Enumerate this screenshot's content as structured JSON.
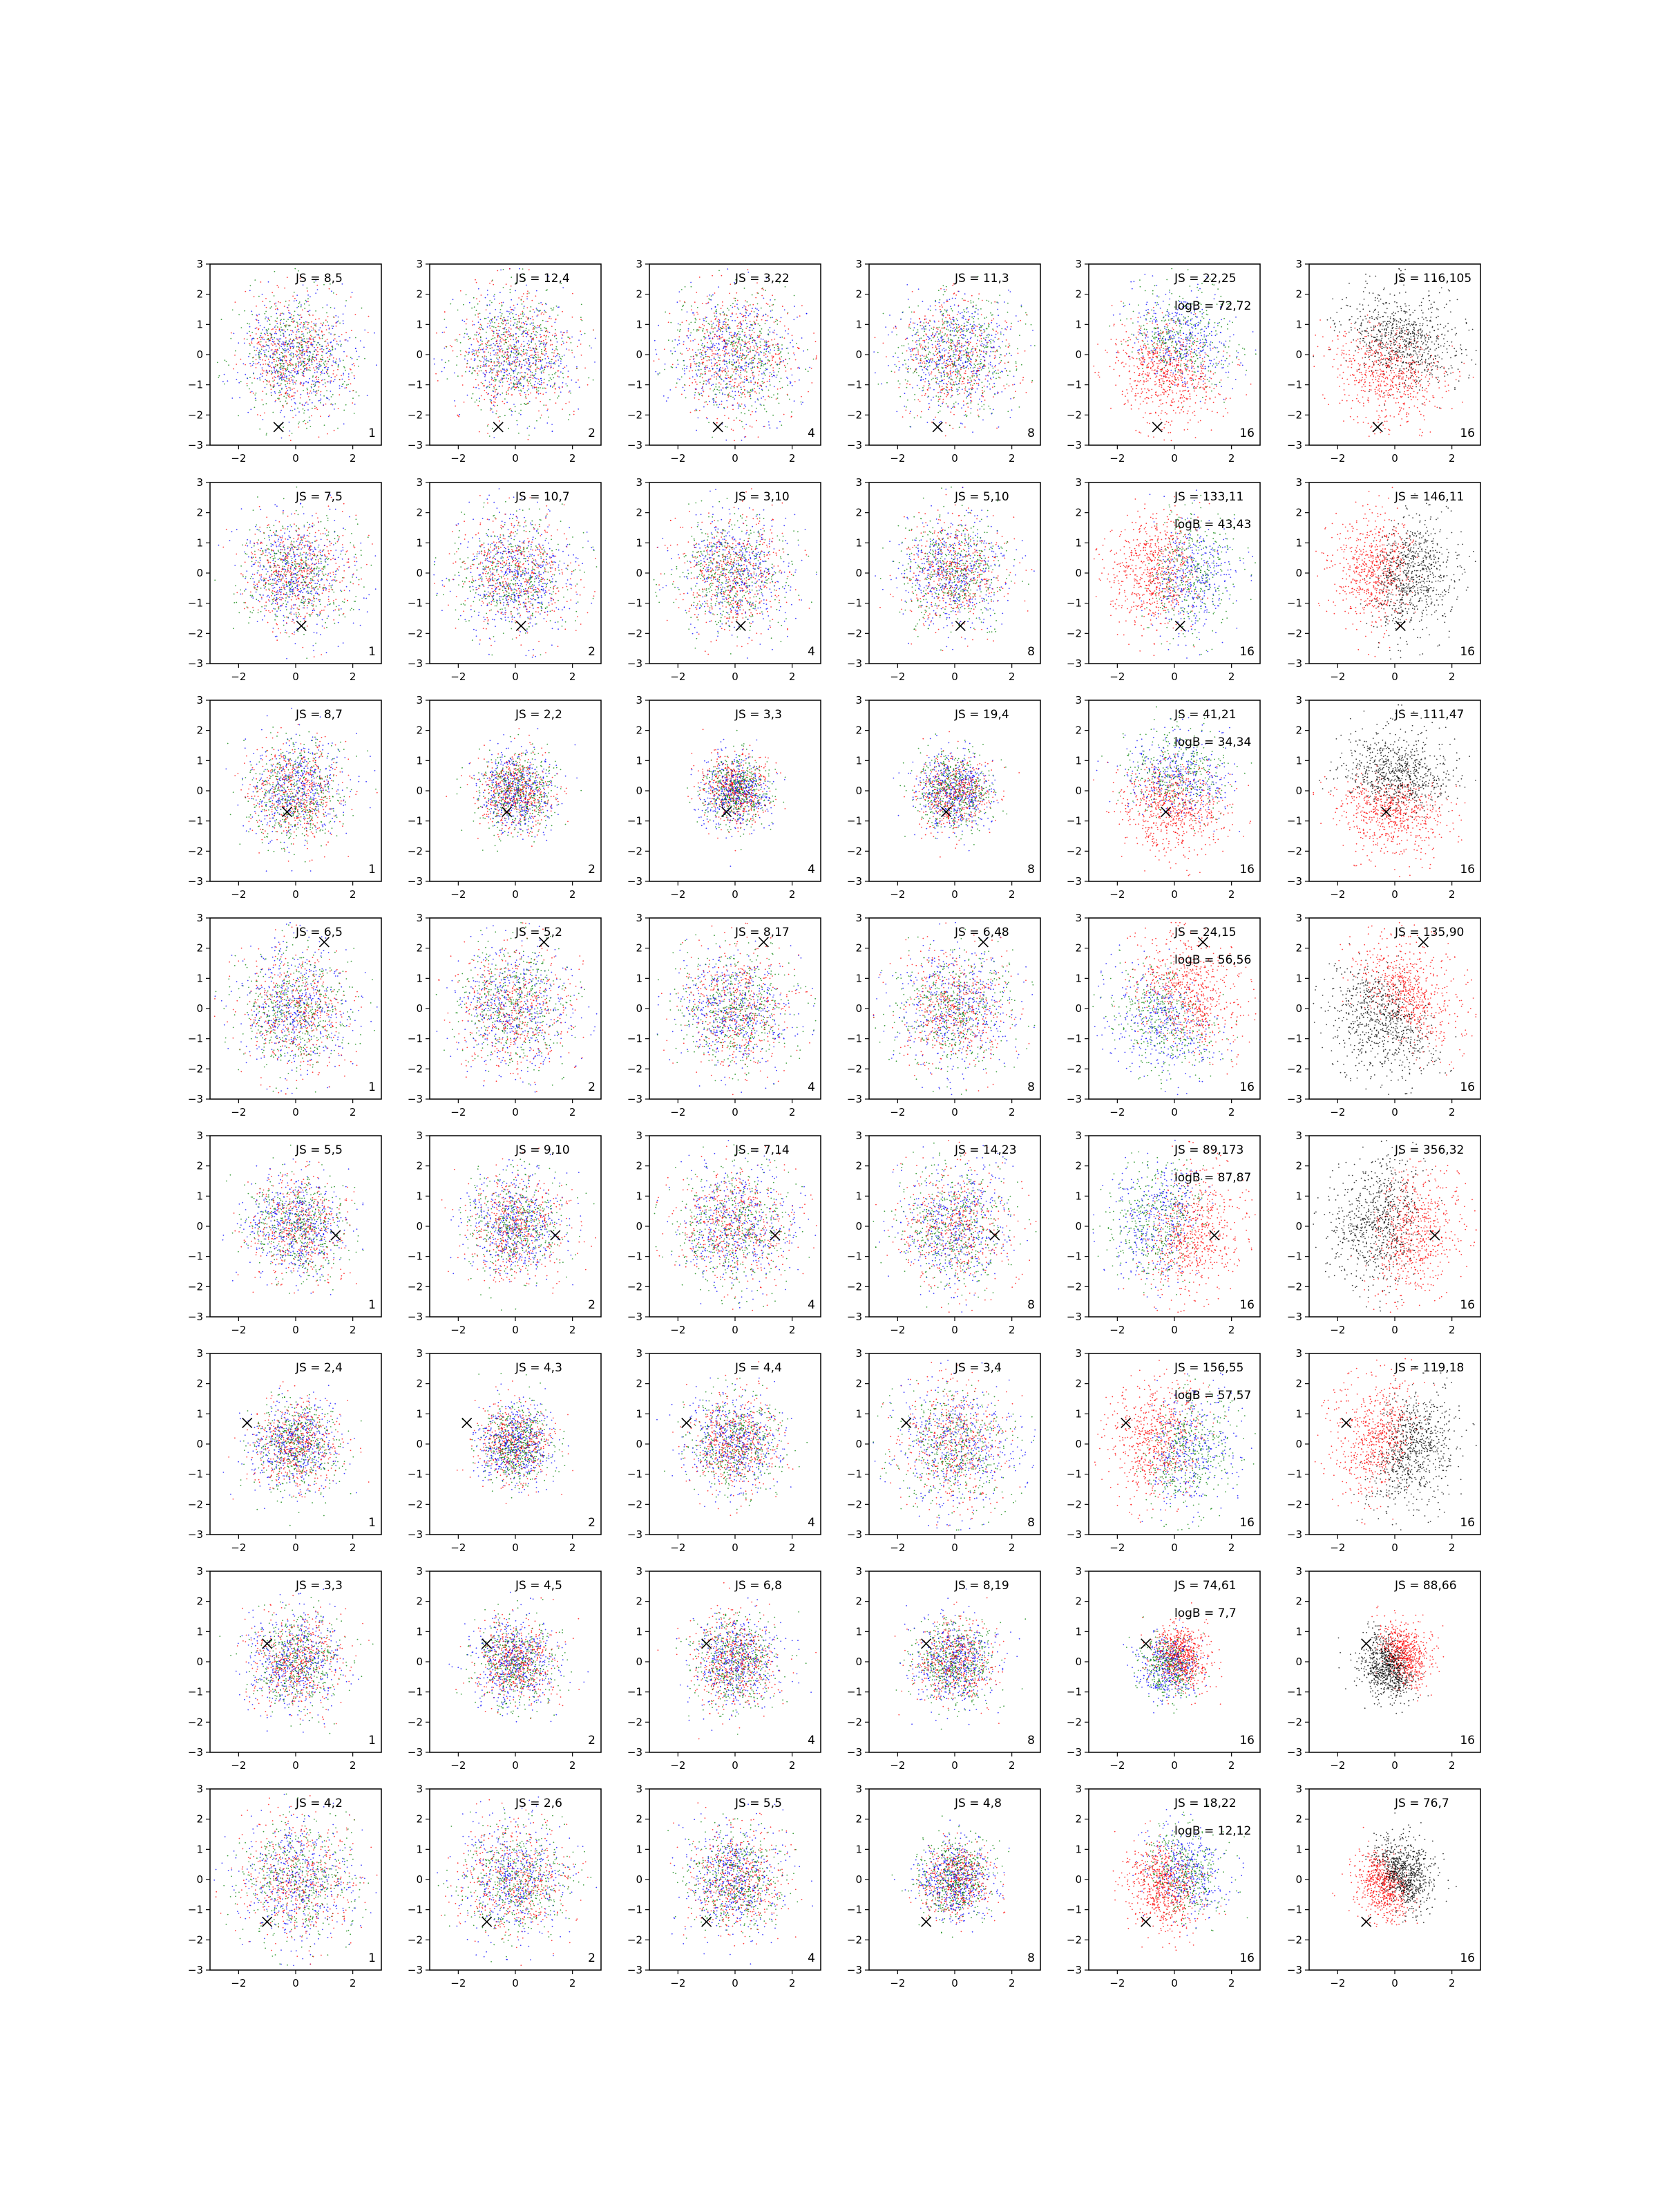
{
  "chart_data": {
    "type": "scatter",
    "layout": {
      "rows": 8,
      "cols": 6
    },
    "xlim": [
      -3,
      3
    ],
    "ylim": [
      -3,
      3
    ],
    "xticks": [
      -2,
      0,
      2
    ],
    "yticks": [
      -3,
      -2,
      -1,
      0,
      1,
      2,
      3
    ],
    "colors": {
      "red": "#ff0000",
      "green": "#008000",
      "blue": "#0000ff",
      "black": "#000000"
    },
    "corner_labels": [
      "1",
      "2",
      "4",
      "8",
      "16",
      "16"
    ],
    "rows": [
      {
        "marker": [
          -0.6,
          -2.4
        ],
        "js": [
          "JS = 8,5",
          "JS = 12,4",
          "JS = 3,22",
          "JS = 11,3",
          "JS = 22,25",
          "JS = 116,105"
        ],
        "logb": "logB = 72,72"
      },
      {
        "marker": [
          0.2,
          -1.75
        ],
        "js": [
          "JS = 7,5",
          "JS = 10,7",
          "JS = 3,10",
          "JS = 5,10",
          "JS = 133,11",
          "JS = 146,11"
        ],
        "logb": "logB = 43,43"
      },
      {
        "marker": [
          -0.3,
          -0.7
        ],
        "js": [
          "JS = 8,7",
          "JS = 2,2",
          "JS = 3,3",
          "JS = 19,4",
          "JS = 41,21",
          "JS = 111,47"
        ],
        "logb": "logB = 34,34"
      },
      {
        "marker": [
          1.0,
          2.2
        ],
        "js": [
          "JS = 6,5",
          "JS = 5,2",
          "JS = 8,17",
          "JS = 6,48",
          "JS = 24,15",
          "JS = 135,90"
        ],
        "logb": "logB = 56,56"
      },
      {
        "marker": [
          1.4,
          -0.3
        ],
        "js": [
          "JS = 5,5",
          "JS = 9,10",
          "JS = 7,14",
          "JS = 14,23",
          "JS = 89,173",
          "JS = 356,32"
        ],
        "logb": "logB = 87,87"
      },
      {
        "marker": [
          -1.7,
          0.7
        ],
        "js": [
          "JS = 2,4",
          "JS = 4,3",
          "JS = 4,4",
          "JS = 3,4",
          "JS = 156,55",
          "JS = 119,18"
        ],
        "logb": "logB = 57,57"
      },
      {
        "marker": [
          -1.0,
          0.6
        ],
        "js": [
          "JS = 3,3",
          "JS = 4,5",
          "JS = 6,8",
          "JS = 8,19",
          "JS = 74,61",
          "JS = 88,66"
        ],
        "logb": "logB = 7,7"
      },
      {
        "marker": [
          -1.0,
          -1.4
        ],
        "js": [
          "JS = 4,2",
          "JS = 2,6",
          "JS = 5,5",
          "JS = 4,8",
          "JS = 18,22",
          "JS = 76,7"
        ],
        "logb": "logB = 12,12"
      }
    ]
  }
}
